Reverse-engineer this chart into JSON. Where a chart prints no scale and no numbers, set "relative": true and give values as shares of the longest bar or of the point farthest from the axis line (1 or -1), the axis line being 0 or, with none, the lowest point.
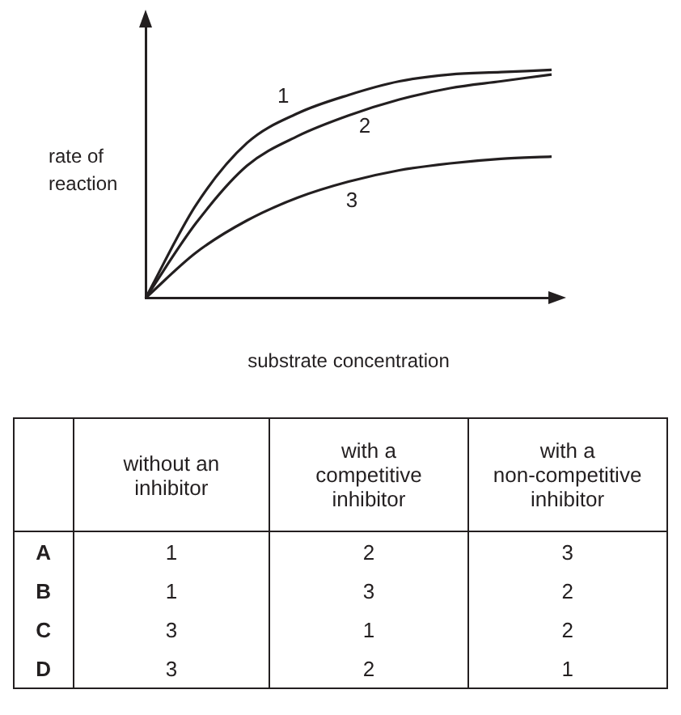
{
  "chart_data": [
    {
      "type": "line",
      "relative": true,
      "xlabel": "substrate concentration",
      "ylabel": "rate of\nreaction",
      "categories": [
        null,
        null,
        null,
        null,
        null,
        null,
        null,
        null,
        null
      ],
      "legend": false,
      "grid": false,
      "marker": "none",
      "series": [
        {
          "name": "1",
          "color": "#231f20",
          "values": [
            0,
            0.41,
            0.68,
            0.81,
            0.89,
            0.95,
            0.98,
            0.99,
            1
          ]
        },
        {
          "name": "2",
          "color": "#231f20",
          "values": [
            0,
            0.33,
            0.58,
            0.71,
            0.8,
            0.87,
            0.92,
            0.95,
            0.98
          ]
        },
        {
          "name": "3",
          "color": "#231f20",
          "values": [
            0,
            0.2,
            0.34,
            0.44,
            0.51,
            0.56,
            0.59,
            0.61,
            0.62
          ]
        }
      ]
    },
    {
      "type": "other",
      "categories": [
        null,
        "without an inhibitor",
        "with a competitive inhibitor",
        "with a non-competitive inhibitor"
      ],
      "y_categories": [
        "A",
        "B",
        "C",
        "D"
      ],
      "cell_labels": [
        [
          "1",
          "2",
          "3"
        ],
        [
          "1",
          "3",
          "2"
        ],
        [
          "3",
          "1",
          "2"
        ],
        [
          "3",
          "2",
          "1"
        ]
      ]
    }
  ]
}
